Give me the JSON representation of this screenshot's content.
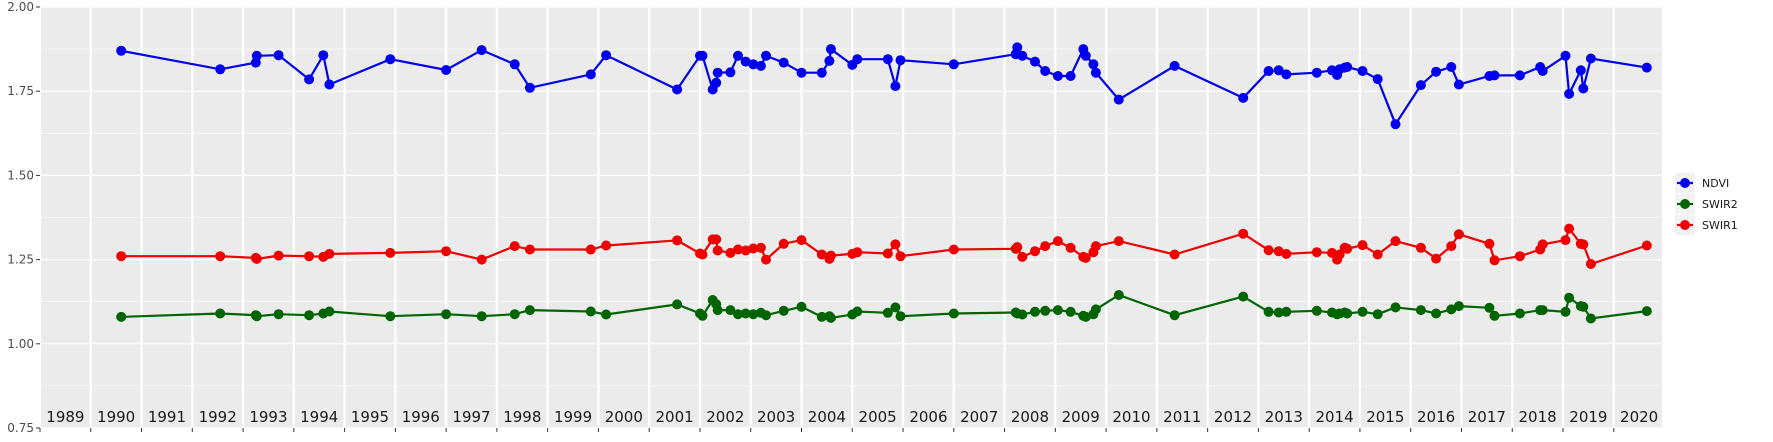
{
  "colors": {
    "NDVI": "#0000ee",
    "SWIR2": "#006400",
    "SWIR1": "#ee0000",
    "panel": "#ebebeb",
    "grid": "#ffffff"
  },
  "chart_data": {
    "type": "line",
    "title": "",
    "xlabel": "",
    "ylabel": "",
    "ylim": [
      0.75,
      2.0
    ],
    "xlim": [
      1988.5,
      2020.45
    ],
    "y_ticks": [
      "0.75",
      "1.00",
      "1.25",
      "1.50",
      "1.75",
      "2.00"
    ],
    "year_labels": [
      "1989",
      "1990",
      "1991",
      "1992",
      "1993",
      "1994",
      "1995",
      "1996",
      "1997",
      "1998",
      "1999",
      "2000",
      "2001",
      "2002",
      "2003",
      "2004",
      "2005",
      "2006",
      "2007",
      "2008",
      "2009",
      "2010",
      "2011",
      "2012",
      "2013",
      "2014",
      "2015",
      "2016",
      "2017",
      "2018",
      "2019",
      "2020"
    ],
    "grid": true,
    "legend_position": "right",
    "markers": "filled circle",
    "series": [
      {
        "name": "NDVI",
        "color_key": "NDVI",
        "points": [
          [
            1990.1,
            1.87
          ],
          [
            1992.05,
            1.815
          ],
          [
            1992.75,
            1.835
          ],
          [
            1992.77,
            1.855
          ],
          [
            1993.2,
            1.857
          ],
          [
            1993.8,
            1.785
          ],
          [
            1994.08,
            1.857
          ],
          [
            1994.2,
            1.77
          ],
          [
            1995.4,
            1.845
          ],
          [
            1996.5,
            1.813
          ],
          [
            1997.2,
            1.872
          ],
          [
            1997.85,
            1.83
          ],
          [
            1998.15,
            1.76
          ],
          [
            1999.35,
            1.8
          ],
          [
            1999.65,
            1.857
          ],
          [
            2001.05,
            1.755
          ],
          [
            2001.5,
            1.855
          ],
          [
            2001.55,
            1.855
          ],
          [
            2001.75,
            1.755
          ],
          [
            2001.82,
            1.775
          ],
          [
            2001.85,
            1.805
          ],
          [
            2002.1,
            1.806
          ],
          [
            2002.25,
            1.855
          ],
          [
            2002.4,
            1.838
          ],
          [
            2002.55,
            1.83
          ],
          [
            2002.7,
            1.825
          ],
          [
            2002.8,
            1.855
          ],
          [
            2003.15,
            1.835
          ],
          [
            2003.5,
            1.805
          ],
          [
            2003.9,
            1.805
          ],
          [
            2004.05,
            1.84
          ],
          [
            2004.08,
            1.875
          ],
          [
            2004.5,
            1.828
          ],
          [
            2004.6,
            1.845
          ],
          [
            2005.2,
            1.845
          ],
          [
            2005.35,
            1.765
          ],
          [
            2005.45,
            1.842
          ],
          [
            2006.5,
            1.83
          ],
          [
            2007.72,
            1.86
          ],
          [
            2007.75,
            1.88
          ],
          [
            2007.85,
            1.855
          ],
          [
            2008.1,
            1.838
          ],
          [
            2008.3,
            1.81
          ],
          [
            2008.55,
            1.795
          ],
          [
            2008.8,
            1.795
          ],
          [
            2009.05,
            1.875
          ],
          [
            2009.1,
            1.855
          ],
          [
            2009.25,
            1.83
          ],
          [
            2009.3,
            1.805
          ],
          [
            2009.75,
            1.725
          ],
          [
            2010.85,
            1.825
          ],
          [
            2012.2,
            1.73
          ],
          [
            2012.7,
            1.81
          ],
          [
            2012.9,
            1.812
          ],
          [
            2013.05,
            1.8
          ],
          [
            2013.65,
            1.805
          ],
          [
            2013.95,
            1.812
          ],
          [
            2014.05,
            1.798
          ],
          [
            2014.1,
            1.815
          ],
          [
            2014.2,
            1.82
          ],
          [
            2014.25,
            1.822
          ],
          [
            2014.55,
            1.81
          ],
          [
            2014.85,
            1.786
          ],
          [
            2015.2,
            1.652
          ],
          [
            2015.7,
            1.768
          ],
          [
            2016.0,
            1.808
          ],
          [
            2016.3,
            1.822
          ],
          [
            2016.45,
            1.77
          ],
          [
            2017.05,
            1.795
          ],
          [
            2017.15,
            1.797
          ],
          [
            2017.65,
            1.797
          ],
          [
            2018.05,
            1.822
          ],
          [
            2018.1,
            1.81
          ],
          [
            2018.55,
            1.855
          ],
          [
            2018.62,
            1.742
          ],
          [
            2018.85,
            1.812
          ],
          [
            2018.9,
            1.758
          ],
          [
            2019.05,
            1.847
          ],
          [
            2020.15,
            1.82
          ]
        ]
      },
      {
        "name": "SWIR2",
        "color_key": "SWIR2",
        "points": [
          [
            1990.1,
            1.08
          ],
          [
            1992.05,
            1.09
          ],
          [
            1992.75,
            1.085
          ],
          [
            1992.77,
            1.082
          ],
          [
            1993.2,
            1.088
          ],
          [
            1993.8,
            1.085
          ],
          [
            1994.08,
            1.09
          ],
          [
            1994.2,
            1.096
          ],
          [
            1995.4,
            1.082
          ],
          [
            1996.5,
            1.088
          ],
          [
            1997.2,
            1.082
          ],
          [
            1997.85,
            1.088
          ],
          [
            1998.15,
            1.1
          ],
          [
            1999.35,
            1.096
          ],
          [
            1999.65,
            1.087
          ],
          [
            2001.05,
            1.117
          ],
          [
            2001.5,
            1.09
          ],
          [
            2001.55,
            1.083
          ],
          [
            2001.75,
            1.13
          ],
          [
            2001.82,
            1.118
          ],
          [
            2001.85,
            1.1
          ],
          [
            2002.1,
            1.1
          ],
          [
            2002.25,
            1.088
          ],
          [
            2002.4,
            1.09
          ],
          [
            2002.55,
            1.088
          ],
          [
            2002.7,
            1.092
          ],
          [
            2002.8,
            1.085
          ],
          [
            2003.15,
            1.098
          ],
          [
            2003.5,
            1.11
          ],
          [
            2003.9,
            1.08
          ],
          [
            2004.05,
            1.082
          ],
          [
            2004.08,
            1.077
          ],
          [
            2004.5,
            1.087
          ],
          [
            2004.6,
            1.096
          ],
          [
            2005.2,
            1.092
          ],
          [
            2005.35,
            1.108
          ],
          [
            2005.45,
            1.082
          ],
          [
            2006.5,
            1.09
          ],
          [
            2007.72,
            1.093
          ],
          [
            2007.75,
            1.09
          ],
          [
            2007.85,
            1.087
          ],
          [
            2008.1,
            1.095
          ],
          [
            2008.3,
            1.098
          ],
          [
            2008.55,
            1.1
          ],
          [
            2008.8,
            1.095
          ],
          [
            2009.05,
            1.083
          ],
          [
            2009.1,
            1.08
          ],
          [
            2009.25,
            1.088
          ],
          [
            2009.3,
            1.102
          ],
          [
            2009.75,
            1.145
          ],
          [
            2010.85,
            1.085
          ],
          [
            2012.2,
            1.14
          ],
          [
            2012.7,
            1.095
          ],
          [
            2012.9,
            1.093
          ],
          [
            2013.05,
            1.095
          ],
          [
            2013.65,
            1.098
          ],
          [
            2013.95,
            1.093
          ],
          [
            2014.05,
            1.088
          ],
          [
            2014.1,
            1.09
          ],
          [
            2014.2,
            1.093
          ],
          [
            2014.25,
            1.09
          ],
          [
            2014.55,
            1.095
          ],
          [
            2014.85,
            1.088
          ],
          [
            2015.2,
            1.108
          ],
          [
            2015.7,
            1.1
          ],
          [
            2016.0,
            1.09
          ],
          [
            2016.3,
            1.102
          ],
          [
            2016.45,
            1.112
          ],
          [
            2017.05,
            1.107
          ],
          [
            2017.15,
            1.083
          ],
          [
            2017.65,
            1.09
          ],
          [
            2018.05,
            1.1
          ],
          [
            2018.1,
            1.1
          ],
          [
            2018.55,
            1.095
          ],
          [
            2018.62,
            1.137
          ],
          [
            2018.85,
            1.112
          ],
          [
            2018.9,
            1.11
          ],
          [
            2019.05,
            1.075
          ],
          [
            2020.15,
            1.097
          ]
        ]
      },
      {
        "name": "SWIR1",
        "color_key": "SWIR1",
        "points": [
          [
            1990.1,
            1.26
          ],
          [
            1992.05,
            1.26
          ],
          [
            1992.75,
            1.255
          ],
          [
            1992.77,
            1.252
          ],
          [
            1993.2,
            1.262
          ],
          [
            1993.8,
            1.26
          ],
          [
            1994.08,
            1.258
          ],
          [
            1994.2,
            1.267
          ],
          [
            1995.4,
            1.27
          ],
          [
            1996.5,
            1.275
          ],
          [
            1997.2,
            1.25
          ],
          [
            1997.85,
            1.29
          ],
          [
            1998.15,
            1.28
          ],
          [
            1999.35,
            1.28
          ],
          [
            1999.65,
            1.292
          ],
          [
            2001.05,
            1.307
          ],
          [
            2001.5,
            1.268
          ],
          [
            2001.55,
            1.265
          ],
          [
            2001.75,
            1.31
          ],
          [
            2001.82,
            1.31
          ],
          [
            2001.85,
            1.277
          ],
          [
            2002.1,
            1.27
          ],
          [
            2002.25,
            1.28
          ],
          [
            2002.4,
            1.277
          ],
          [
            2002.55,
            1.283
          ],
          [
            2002.7,
            1.285
          ],
          [
            2002.8,
            1.25
          ],
          [
            2003.15,
            1.297
          ],
          [
            2003.5,
            1.308
          ],
          [
            2003.9,
            1.265
          ],
          [
            2004.05,
            1.252
          ],
          [
            2004.08,
            1.262
          ],
          [
            2004.5,
            1.267
          ],
          [
            2004.6,
            1.272
          ],
          [
            2005.2,
            1.268
          ],
          [
            2005.35,
            1.295
          ],
          [
            2005.45,
            1.26
          ],
          [
            2006.5,
            1.28
          ],
          [
            2007.72,
            1.282
          ],
          [
            2007.75,
            1.287
          ],
          [
            2007.85,
            1.258
          ],
          [
            2008.1,
            1.275
          ],
          [
            2008.3,
            1.29
          ],
          [
            2008.55,
            1.305
          ],
          [
            2008.8,
            1.285
          ],
          [
            2009.05,
            1.258
          ],
          [
            2009.1,
            1.255
          ],
          [
            2009.25,
            1.272
          ],
          [
            2009.3,
            1.29
          ],
          [
            2009.75,
            1.305
          ],
          [
            2010.85,
            1.265
          ],
          [
            2012.2,
            1.327
          ],
          [
            2012.7,
            1.278
          ],
          [
            2012.9,
            1.275
          ],
          [
            2013.05,
            1.267
          ],
          [
            2013.65,
            1.272
          ],
          [
            2013.95,
            1.27
          ],
          [
            2014.05,
            1.25
          ],
          [
            2014.1,
            1.265
          ],
          [
            2014.2,
            1.285
          ],
          [
            2014.25,
            1.282
          ],
          [
            2014.55,
            1.293
          ],
          [
            2014.85,
            1.265
          ],
          [
            2015.2,
            1.305
          ],
          [
            2015.7,
            1.285
          ],
          [
            2016.0,
            1.253
          ],
          [
            2016.3,
            1.29
          ],
          [
            2016.45,
            1.325
          ],
          [
            2017.05,
            1.297
          ],
          [
            2017.15,
            1.248
          ],
          [
            2017.65,
            1.26
          ],
          [
            2018.05,
            1.28
          ],
          [
            2018.1,
            1.295
          ],
          [
            2018.55,
            1.308
          ],
          [
            2018.62,
            1.342
          ],
          [
            2018.85,
            1.297
          ],
          [
            2018.9,
            1.295
          ],
          [
            2019.05,
            1.237
          ],
          [
            2020.15,
            1.292
          ]
        ]
      }
    ],
    "legend": [
      "NDVI",
      "SWIR2",
      "SWIR1"
    ]
  }
}
